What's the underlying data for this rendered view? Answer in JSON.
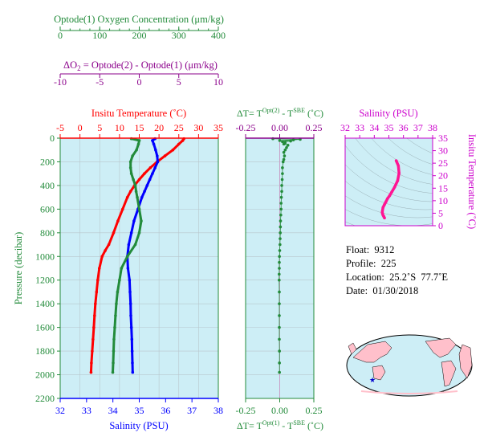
{
  "colors": {
    "panel_bg": "#cdeef6",
    "temperature": "#ff0000",
    "salinity": "#0000ff",
    "oxygen": "#228b3a",
    "delta_o2": "#8b008b",
    "salinity_axis": "#cc00cc",
    "ts_curve": "#ff1493",
    "grid": "#b8c6cc"
  },
  "header": {
    "oxygen_axis_label": "Optode(1) Oxygen Concentration (μm/kg)",
    "oxygen_ticks": [
      "0",
      "100",
      "200",
      "300",
      "400"
    ],
    "delta_o2_label_prefix": "ΔO",
    "delta_o2_label_sub": "2",
    "delta_o2_label_rest": " = Optode(2) - Optode(1)    (μm/kg)",
    "delta_o2_ticks": [
      "-10",
      "-5",
      "0",
      "5",
      "10"
    ]
  },
  "info": {
    "float": "Float:  9312",
    "profile": "Profile:  225",
    "location": "Location:  25.2˚S  77.7˚E",
    "date": "Date:  01/30/2018"
  },
  "chart_data": [
    {
      "type": "line",
      "panel": "profile",
      "xlabel_top": "Insitu Temperature (˚C)",
      "xlabel_bottom": "Salinity (PSU)",
      "ylabel": "Pressure (decibar)",
      "ylim": [
        2200,
        0
      ],
      "temperature_ticks": [
        -5,
        0,
        5,
        10,
        15,
        20,
        25,
        30,
        35
      ],
      "salinity_ticks": [
        32,
        33,
        34,
        35,
        36,
        37,
        38
      ],
      "pressure_ticks": [
        0,
        200,
        400,
        600,
        800,
        1000,
        1200,
        1400,
        1600,
        1800,
        2000,
        2200
      ],
      "series": [
        {
          "axis": "temperature",
          "pressure": [
            5,
            20,
            50,
            100,
            150,
            200,
            250,
            300,
            350,
            400,
            450,
            500,
            600,
            700,
            800,
            900,
            950,
            1000,
            1100,
            1200,
            1300,
            1400,
            1500,
            1600,
            1700,
            1800,
            1900,
            1980
          ],
          "values": [
            26.3,
            26.0,
            25.0,
            23.5,
            21.5,
            19.5,
            17.8,
            16.3,
            15.0,
            13.8,
            12.8,
            12.0,
            10.8,
            9.6,
            8.5,
            7.3,
            6.4,
            5.6,
            4.9,
            4.5,
            4.2,
            3.9,
            3.7,
            3.5,
            3.3,
            3.1,
            2.9,
            2.8
          ]
        },
        {
          "axis": "salinity",
          "pressure": [
            5,
            20,
            50,
            100,
            150,
            200,
            250,
            300,
            350,
            400,
            450,
            500,
            600,
            700,
            800,
            900,
            1000,
            1100,
            1200,
            1300,
            1400,
            1500,
            1600,
            1700,
            1800,
            1900,
            1980
          ],
          "values": [
            35.6,
            35.5,
            35.55,
            35.62,
            35.68,
            35.7,
            35.6,
            35.5,
            35.4,
            35.3,
            35.2,
            35.1,
            34.95,
            34.8,
            34.7,
            34.6,
            34.55,
            34.57,
            34.63,
            34.65,
            34.67,
            34.68,
            34.7,
            34.72,
            34.73,
            34.74,
            34.75
          ]
        },
        {
          "axis": "oxygen",
          "pressure": [
            5,
            20,
            50,
            100,
            150,
            200,
            250,
            300,
            350,
            400,
            450,
            500,
            600,
            700,
            800,
            900,
            1000,
            1100,
            1200,
            1300,
            1400,
            1500,
            1600,
            1700,
            1800,
            1900,
            1980
          ],
          "values": [
            180,
            200,
            198,
            193,
            183,
            178,
            178,
            180,
            185,
            190,
            192,
            195,
            200,
            205,
            200,
            190,
            170,
            155,
            150,
            145,
            142,
            140,
            138,
            136,
            135,
            134,
            133
          ]
        }
      ]
    },
    {
      "type": "scatter",
      "panel": "temperature_difference",
      "xlabel_top_prefix": "ΔT= T",
      "xlabel_top_sup1": "Opt(2)",
      "xlabel_top_mid": " - T",
      "xlabel_top_sup2": "SBE",
      "xlabel_top_unit": " (˚C)",
      "xlabel_bottom_prefix": "ΔT= T",
      "xlabel_bottom_sup1": "Opt(1)",
      "xlabel_bottom_mid": " - T",
      "xlabel_bottom_sup2": "SBE",
      "xlabel_bottom_unit": " (˚C)",
      "xlim": [
        -0.25,
        0.25
      ],
      "x_ticks": [
        -0.25,
        0.0,
        0.25
      ],
      "ylim": [
        2200,
        0
      ],
      "pressure": [
        5,
        10,
        15,
        20,
        25,
        30,
        40,
        50,
        60,
        80,
        100,
        120,
        150,
        180,
        200,
        250,
        300,
        350,
        400,
        450,
        500,
        550,
        600,
        650,
        700,
        750,
        800,
        850,
        900,
        950,
        1000,
        1050,
        1100,
        1150,
        1200,
        1300,
        1400,
        1500,
        1600,
        1700,
        1800,
        1900,
        1980
      ],
      "values": [
        -0.05,
        0.15,
        0.1,
        0.0,
        0.08,
        0.02,
        0.04,
        0.03,
        0.06,
        0.05,
        0.04,
        0.03,
        0.035,
        0.03,
        0.025,
        0.02,
        0.02,
        0.018,
        0.015,
        0.015,
        0.012,
        0.01,
        0.01,
        0.008,
        0.006,
        0.005,
        0.004,
        0.003,
        0.002,
        0.0,
        -0.002,
        -0.003,
        -0.003,
        -0.004,
        -0.004,
        -0.003,
        -0.003,
        -0.003,
        -0.003,
        -0.003,
        -0.002,
        -0.002,
        -0.002
      ]
    },
    {
      "type": "line",
      "panel": "ts_diagram",
      "xlabel": "Salinity (PSU)",
      "ylabel": "Insitu Temperature (˚C)",
      "x_ticks": [
        32,
        33,
        34,
        35,
        36,
        37,
        38
      ],
      "y_ticks": [
        0,
        5,
        10,
        15,
        20,
        25,
        30,
        35
      ],
      "xlim": [
        32,
        38
      ],
      "ylim": [
        0,
        35
      ],
      "salinity": [
        35.5,
        35.65,
        35.7,
        35.6,
        35.4,
        35.2,
        35.05,
        34.9,
        34.8,
        34.7,
        34.6,
        34.55,
        34.56,
        34.6,
        34.65,
        34.7
      ],
      "temperature": [
        26.0,
        24.0,
        21.0,
        18.0,
        15.5,
        13.5,
        12.0,
        10.8,
        9.6,
        8.5,
        7.3,
        5.6,
        4.9,
        4.2,
        3.7,
        3.1
      ]
    }
  ],
  "map": {
    "marker_lat": -25.2,
    "marker_lon": 77.7
  }
}
